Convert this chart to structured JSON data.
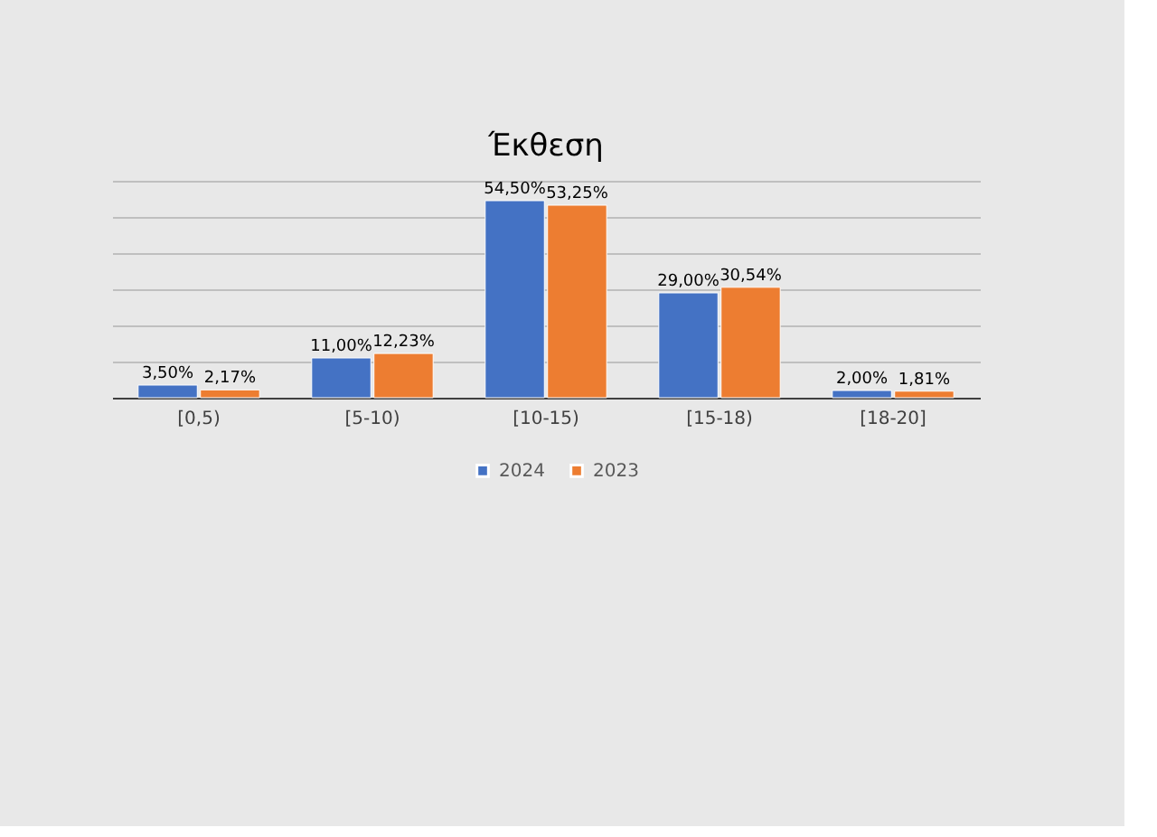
{
  "chart_data": {
    "type": "bar",
    "title": "Έκθεση",
    "categories": [
      "[0,5)",
      "[5-10)",
      "[10-15)",
      "[15-18)",
      "[18-20]"
    ],
    "series": [
      {
        "name": "2024",
        "color": "#4472c4",
        "values": [
          3.5,
          11.0,
          54.5,
          29.0,
          2.0
        ],
        "value_labels": [
          "3,50%",
          "11,00%",
          "54,50%",
          "29,00%",
          "2,00%"
        ]
      },
      {
        "name": "2023",
        "color": "#ed7d31",
        "values": [
          2.17,
          12.23,
          53.25,
          30.54,
          1.81
        ],
        "value_labels": [
          "2,17%",
          "12,23%",
          "53,25%",
          "30,54%",
          "1,81%"
        ]
      }
    ],
    "ylim": [
      0,
      60
    ],
    "yticks": [
      {
        "value": 0,
        "label": null
      },
      {
        "value": 10,
        "label": null
      },
      {
        "value": 20,
        "label": null
      },
      {
        "value": 30,
        "label": null
      },
      {
        "value": 40,
        "label": null
      },
      {
        "value": 50,
        "label": null
      },
      {
        "value": 60,
        "label": null
      }
    ],
    "tick_labels": "x",
    "grid": "y",
    "legend": "bottom"
  }
}
